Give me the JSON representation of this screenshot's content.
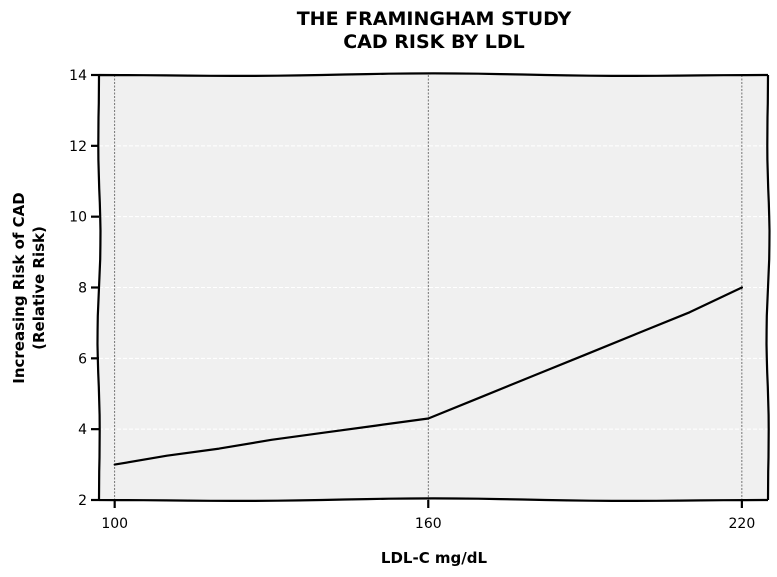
{
  "chart_data": {
    "type": "line",
    "title_lines": [
      "THE FRAMINGHAM STUDY",
      "CAD RISK BY LDL"
    ],
    "xlabel": "LDL-C mg/dL",
    "ylabel_lines": [
      "Increasing Risk of CAD",
      "(Relative Risk)"
    ],
    "xlim": [
      97,
      225
    ],
    "ylim": [
      2,
      14
    ],
    "x_ticks": [
      100,
      160,
      220
    ],
    "y_ticks": [
      2,
      4,
      6,
      8,
      10,
      12,
      14
    ],
    "grid": true,
    "series": [
      {
        "x": [
          100,
          110,
          120,
          130,
          140,
          150,
          160,
          170,
          180,
          190,
          200,
          210,
          220
        ],
        "y": [
          3.0,
          3.25,
          3.45,
          3.7,
          3.9,
          4.1,
          4.3,
          4.9,
          5.5,
          6.1,
          6.7,
          7.3,
          8.0
        ]
      }
    ],
    "colors": {
      "line": "#000000",
      "plot_bg": "#f0f0f0",
      "grid": "#ffffff"
    }
  }
}
